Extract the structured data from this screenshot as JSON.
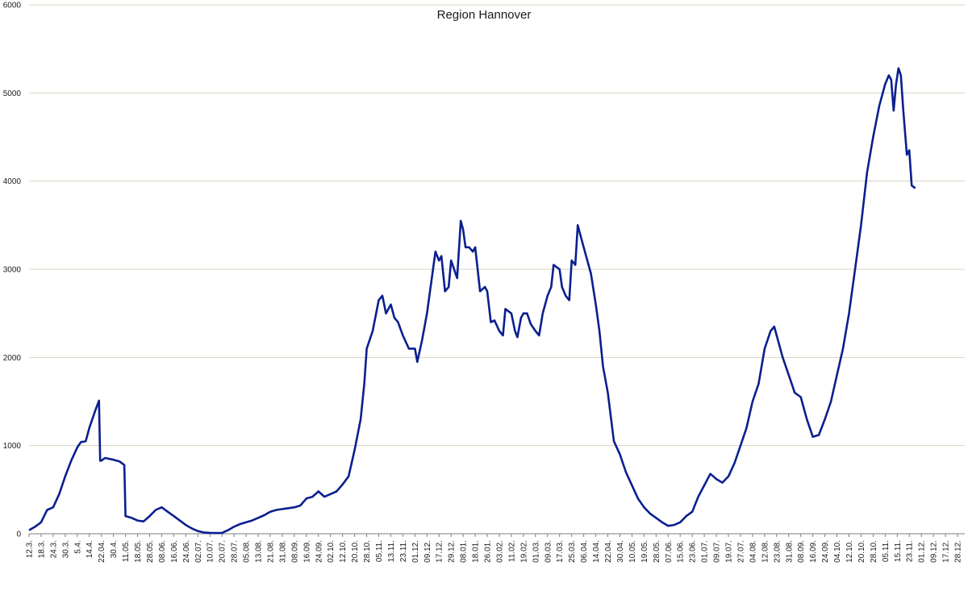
{
  "chart_data": {
    "type": "line",
    "title": "Region Hannover",
    "xlabel": "",
    "ylabel": "",
    "ylim": [
      0,
      6000
    ],
    "yticks": [
      0,
      1000,
      2000,
      3000,
      4000,
      5000,
      6000
    ],
    "grid": true,
    "legend": "none",
    "colors": {
      "line": "#0a1f8f",
      "grid": "#d9d3bf",
      "axis": "#7f7f7f",
      "text": "#1a1a1a"
    },
    "x_tick_labels": [
      "12.3.",
      "18.3.",
      "24.3.",
      "30.3.",
      "5.4.",
      "14.4.",
      "22.04.",
      "30.4.",
      "11.05.",
      "18.05.",
      "28.05.",
      "08.06.",
      "16.06.",
      "24.06.",
      "02.07.",
      "10.07.",
      "20.07.",
      "28.07.",
      "05.08.",
      "13.08.",
      "21.08.",
      "31.08.",
      "08.09.",
      "16.09.",
      "24.09.",
      "02.10.",
      "12.10.",
      "20.10.",
      "28.10.",
      "05.11.",
      "13.11.",
      "23.11.",
      "01.12.",
      "09.12.",
      "17.12.",
      "29.12.",
      "08.01.",
      "18.01.",
      "26.01.",
      "03.02.",
      "11.02.",
      "19.02.",
      "01.03.",
      "09.03.",
      "17.03.",
      "25.03.",
      "06.04.",
      "14.04.",
      "22.04.",
      "30.04.",
      "10.05.",
      "19.05.",
      "28.05.",
      "07.06.",
      "15.06.",
      "23.06.",
      "01.07.",
      "09.07.",
      "19.07.",
      "27.07.",
      "04.08.",
      "12.08.",
      "23.08.",
      "31.08.",
      "08.09.",
      "16.09.",
      "24.09.",
      "04.10.",
      "12.10.",
      "20.10.",
      "28.10.",
      "05.11.",
      "15.11.",
      "23.11.",
      "01.12.",
      "09.12.",
      "17.12.",
      "28.12."
    ],
    "series": [
      {
        "values": [
          [
            0,
            40
          ],
          [
            0.5,
            80
          ],
          [
            1,
            130
          ],
          [
            1.5,
            270
          ],
          [
            2,
            300
          ],
          [
            2.5,
            450
          ],
          [
            3,
            650
          ],
          [
            3.5,
            830
          ],
          [
            4,
            980
          ],
          [
            4.3,
            1040
          ],
          [
            4.7,
            1050
          ],
          [
            5,
            1200
          ],
          [
            5.5,
            1400
          ],
          [
            5.8,
            1510
          ],
          [
            5.9,
            830
          ],
          [
            6,
            830
          ],
          [
            6.3,
            860
          ],
          [
            7,
            840
          ],
          [
            7.5,
            820
          ],
          [
            7.9,
            780
          ],
          [
            8,
            200
          ],
          [
            8.5,
            180
          ],
          [
            9,
            150
          ],
          [
            9.5,
            140
          ],
          [
            10,
            200
          ],
          [
            10.5,
            270
          ],
          [
            11,
            300
          ],
          [
            11.5,
            250
          ],
          [
            12,
            200
          ],
          [
            12.5,
            150
          ],
          [
            13,
            100
          ],
          [
            13.5,
            60
          ],
          [
            14,
            30
          ],
          [
            14.5,
            15
          ],
          [
            15,
            10
          ],
          [
            15.5,
            8
          ],
          [
            16,
            10
          ],
          [
            16.5,
            40
          ],
          [
            17,
            80
          ],
          [
            17.5,
            110
          ],
          [
            18,
            130
          ],
          [
            18.5,
            150
          ],
          [
            19,
            180
          ],
          [
            19.5,
            210
          ],
          [
            20,
            250
          ],
          [
            20.5,
            270
          ],
          [
            21,
            280
          ],
          [
            21.5,
            290
          ],
          [
            22,
            300
          ],
          [
            22.5,
            320
          ],
          [
            23,
            400
          ],
          [
            23.5,
            420
          ],
          [
            24,
            480
          ],
          [
            24.5,
            420
          ],
          [
            25,
            450
          ],
          [
            25.5,
            480
          ],
          [
            26,
            560
          ],
          [
            26.5,
            650
          ],
          [
            27,
            950
          ],
          [
            27.5,
            1300
          ],
          [
            27.8,
            1700
          ],
          [
            28,
            2100
          ],
          [
            28.5,
            2300
          ],
          [
            29,
            2650
          ],
          [
            29.3,
            2700
          ],
          [
            29.6,
            2500
          ],
          [
            30,
            2600
          ],
          [
            30.3,
            2450
          ],
          [
            30.6,
            2400
          ],
          [
            31,
            2250
          ],
          [
            31.5,
            2100
          ],
          [
            32,
            2100
          ],
          [
            32.2,
            1950
          ],
          [
            32.6,
            2200
          ],
          [
            33,
            2500
          ],
          [
            33.4,
            2900
          ],
          [
            33.7,
            3200
          ],
          [
            34,
            3100
          ],
          [
            34.2,
            3150
          ],
          [
            34.5,
            2750
          ],
          [
            34.8,
            2800
          ],
          [
            35,
            3100
          ],
          [
            35.5,
            2900
          ],
          [
            35.8,
            3550
          ],
          [
            36,
            3450
          ],
          [
            36.2,
            3250
          ],
          [
            36.5,
            3250
          ],
          [
            36.8,
            3200
          ],
          [
            37,
            3250
          ],
          [
            37.4,
            2750
          ],
          [
            37.8,
            2800
          ],
          [
            38,
            2750
          ],
          [
            38.3,
            2400
          ],
          [
            38.6,
            2420
          ],
          [
            39,
            2300
          ],
          [
            39.3,
            2250
          ],
          [
            39.5,
            2550
          ],
          [
            40,
            2500
          ],
          [
            40.3,
            2300
          ],
          [
            40.5,
            2230
          ],
          [
            40.8,
            2450
          ],
          [
            41,
            2500
          ],
          [
            41.3,
            2500
          ],
          [
            41.6,
            2380
          ],
          [
            42,
            2300
          ],
          [
            42.3,
            2250
          ],
          [
            42.6,
            2500
          ],
          [
            43,
            2700
          ],
          [
            43.3,
            2800
          ],
          [
            43.5,
            3050
          ],
          [
            44,
            3000
          ],
          [
            44.2,
            2800
          ],
          [
            44.5,
            2700
          ],
          [
            44.8,
            2650
          ],
          [
            45,
            3100
          ],
          [
            45.3,
            3050
          ],
          [
            45.5,
            3500
          ],
          [
            45.8,
            3350
          ],
          [
            46,
            3250
          ],
          [
            46.3,
            3100
          ],
          [
            46.6,
            2950
          ],
          [
            47,
            2600
          ],
          [
            47.3,
            2300
          ],
          [
            47.6,
            1900
          ],
          [
            48,
            1600
          ],
          [
            48.5,
            1050
          ],
          [
            49,
            900
          ],
          [
            49.5,
            700
          ],
          [
            50,
            550
          ],
          [
            50.5,
            400
          ],
          [
            51,
            300
          ],
          [
            51.5,
            230
          ],
          [
            52,
            180
          ],
          [
            52.5,
            130
          ],
          [
            53,
            90
          ],
          [
            53.5,
            100
          ],
          [
            54,
            130
          ],
          [
            54.5,
            200
          ],
          [
            55,
            250
          ],
          [
            55.5,
            420
          ],
          [
            56,
            550
          ],
          [
            56.5,
            680
          ],
          [
            57,
            620
          ],
          [
            57.5,
            580
          ],
          [
            58,
            650
          ],
          [
            58.5,
            800
          ],
          [
            59,
            1000
          ],
          [
            59.5,
            1200
          ],
          [
            60,
            1500
          ],
          [
            60.5,
            1700
          ],
          [
            61,
            2100
          ],
          [
            61.5,
            2300
          ],
          [
            61.8,
            2350
          ],
          [
            62,
            2250
          ],
          [
            62.5,
            2000
          ],
          [
            63,
            1800
          ],
          [
            63.5,
            1600
          ],
          [
            64,
            1550
          ],
          [
            64.5,
            1300
          ],
          [
            65,
            1100
          ],
          [
            65.5,
            1120
          ],
          [
            66,
            1300
          ],
          [
            66.5,
            1500
          ],
          [
            67,
            1800
          ],
          [
            67.5,
            2100
          ],
          [
            68,
            2500
          ],
          [
            68.5,
            3000
          ],
          [
            69,
            3500
          ],
          [
            69.5,
            4100
          ],
          [
            70,
            4500
          ],
          [
            70.5,
            4850
          ],
          [
            71,
            5100
          ],
          [
            71.3,
            5200
          ],
          [
            71.5,
            5150
          ],
          [
            71.7,
            4800
          ],
          [
            71.9,
            5100
          ],
          [
            72.1,
            5280
          ],
          [
            72.3,
            5200
          ],
          [
            72.5,
            4800
          ],
          [
            72.8,
            4300
          ],
          [
            73,
            4350
          ],
          [
            73.2,
            3950
          ],
          [
            73.5,
            3920
          ]
        ]
      }
    ]
  }
}
